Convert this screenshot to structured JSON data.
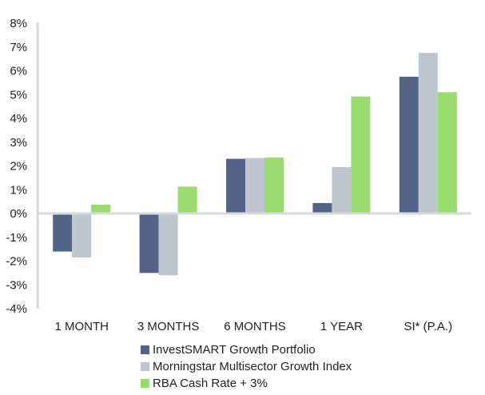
{
  "chart_data": {
    "type": "bar",
    "title": "",
    "xlabel": "",
    "ylabel": "",
    "ylim": [
      -4,
      8
    ],
    "y_ticks": [
      8,
      7,
      6,
      5,
      4,
      3,
      2,
      1,
      0,
      -1,
      -2,
      -3,
      -4
    ],
    "y_tick_format": "{v}%",
    "grid": false,
    "legend_position": "bottom-center",
    "categories": [
      "1 MONTH",
      "3 MONTHS",
      "6 MONTHS",
      "1 YEAR",
      "SI* (P.A.)"
    ],
    "series": [
      {
        "name": "InvestSMART Growth Portfolio",
        "color": "#536387",
        "values": [
          -1.6,
          -2.5,
          2.3,
          0.44,
          5.75
        ]
      },
      {
        "name": "Morningstar Multisector Growth Index",
        "color": "#bdc6cf",
        "values": [
          -1.85,
          -2.6,
          2.33,
          1.95,
          6.75
        ]
      },
      {
        "name": "RBA Cash Rate + 3%",
        "color": "#98dc6e",
        "values": [
          0.37,
          1.13,
          2.35,
          4.92,
          5.1
        ]
      }
    ],
    "axis_color": "#d9d9d9"
  }
}
